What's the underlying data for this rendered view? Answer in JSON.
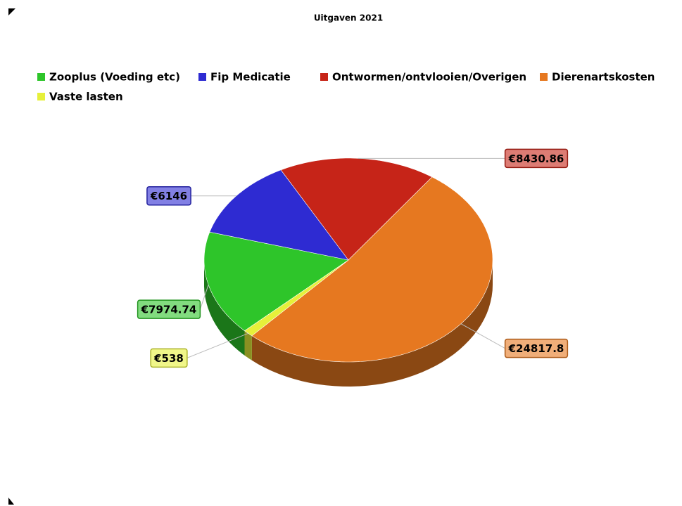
{
  "chart_data": {
    "type": "pie",
    "title": "Uitgaven 2021",
    "categories": [
      "Zooplus (Voeding etc)",
      "Fip Medicatie",
      "Ontwormen/ontvlooien/Overigen",
      "Dierenartskosten",
      "Vaste lasten"
    ],
    "values": [
      7974.74,
      6146,
      8430.86,
      24817.8,
      538
    ],
    "value_labels": [
      "€7974.74",
      "€6146",
      "€8430.86",
      "€24817.8",
      "€538"
    ],
    "colors": [
      "#2ec52a",
      "#2e2bd2",
      "#c62418",
      "#e67820",
      "#e6f03a"
    ]
  }
}
